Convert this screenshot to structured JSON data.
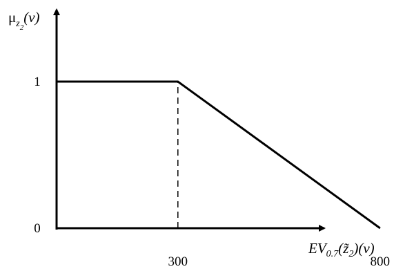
{
  "chart_data": {
    "type": "line",
    "title": "",
    "xlabel": {
      "prefix": "EV",
      "subscript": "0.7",
      "body": "(z̃",
      "body_subscript": "2",
      "suffix": ")(v)"
    },
    "ylabel": {
      "prefix": "μ",
      "subscript": "z",
      "sub_subscript": "2",
      "suffix": "(v)"
    },
    "xlim": [
      0,
      1000
    ],
    "ylim": [
      0,
      1.0
    ],
    "x_ticks": [
      {
        "value": 300,
        "label": "300"
      },
      {
        "value": 800,
        "label": "800"
      }
    ],
    "y_ticks": [
      {
        "value": 0,
        "label": "0"
      },
      {
        "value": 1,
        "label": "1"
      }
    ],
    "series": [
      {
        "x": [
          0,
          300,
          800
        ],
        "y": [
          1,
          1,
          0
        ]
      }
    ],
    "reference_lines": [
      {
        "x": 300,
        "y_from": 0,
        "y_to": 1,
        "style": "dashed"
      }
    ],
    "grid": false,
    "legend": "none"
  }
}
